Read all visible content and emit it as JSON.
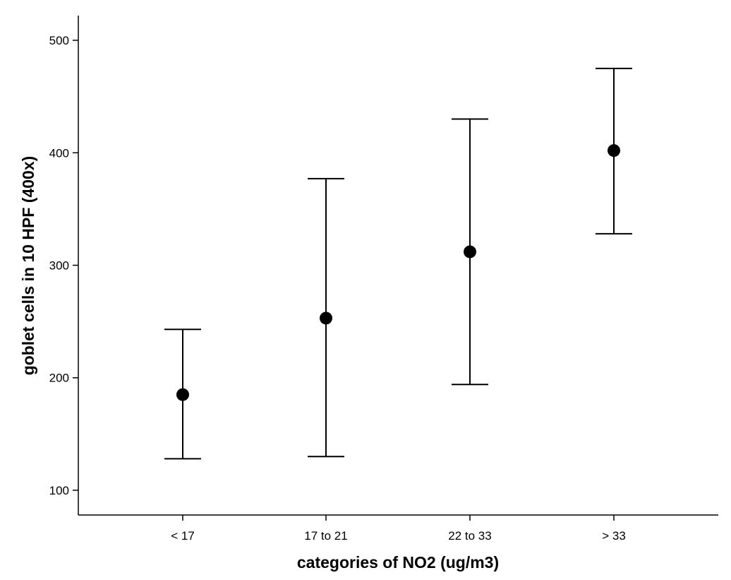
{
  "chart_data": {
    "type": "scatter",
    "title": "",
    "xlabel": "categories of NO2 (ug/m3)",
    "ylabel": "goblet cells in 10 HPF (400x)",
    "ylim": [
      78,
      522
    ],
    "yticks": [
      100,
      200,
      300,
      400,
      500
    ],
    "grid": false,
    "categories": [
      "< 17",
      "17 to 21",
      "22 to 33",
      "> 33"
    ],
    "series": [
      {
        "values": [
          185,
          253,
          312,
          402
        ],
        "lower": [
          128,
          130,
          194,
          328
        ],
        "upper": [
          243,
          377,
          430,
          475
        ]
      }
    ]
  }
}
